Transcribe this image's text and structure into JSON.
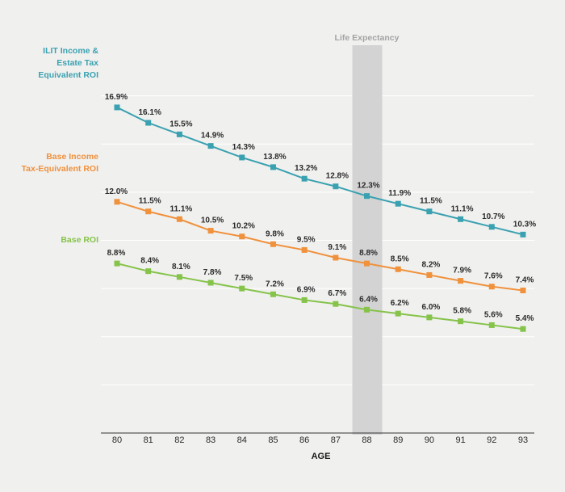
{
  "chart_data": {
    "type": "line",
    "xlabel": "AGE",
    "ylabel": "",
    "x": [
      80,
      81,
      82,
      83,
      84,
      85,
      86,
      87,
      88,
      89,
      90,
      91,
      92,
      93
    ],
    "ylim": [
      0,
      20
    ],
    "grid": true,
    "highlight": {
      "label": "Life Expectancy",
      "x": 88
    },
    "series": [
      {
        "name_lines": [
          "ILIT Income &",
          "Estate Tax",
          "Equivalent ROI"
        ],
        "color": "#3aa1b0",
        "values": [
          16.9,
          16.1,
          15.5,
          14.9,
          14.3,
          13.8,
          13.2,
          12.8,
          12.3,
          11.9,
          11.5,
          11.1,
          10.7,
          10.3
        ],
        "labels": [
          "16.9%",
          "16.1%",
          "15.5%",
          "14.9%",
          "14.3%",
          "13.8%",
          "13.2%",
          "12.8%",
          "12.3%",
          "11.9%",
          "11.5%",
          "11.1%",
          "10.7%",
          "10.3%"
        ]
      },
      {
        "name_lines": [
          "Base Income",
          "Tax-Equivalent ROI"
        ],
        "color": "#f0913c",
        "values": [
          12.0,
          11.5,
          11.1,
          10.5,
          10.2,
          9.8,
          9.5,
          9.1,
          8.8,
          8.5,
          8.2,
          7.9,
          7.6,
          7.4
        ],
        "labels": [
          "12.0%",
          "11.5%",
          "11.1%",
          "10.5%",
          "10.2%",
          "9.8%",
          "9.5%",
          "9.1%",
          "8.8%",
          "8.5%",
          "8.2%",
          "7.9%",
          "7.6%",
          "7.4%"
        ]
      },
      {
        "name_lines": [
          "Base ROI"
        ],
        "color": "#86c34a",
        "values": [
          8.8,
          8.4,
          8.1,
          7.8,
          7.5,
          7.2,
          6.9,
          6.7,
          6.4,
          6.2,
          6.0,
          5.8,
          5.6,
          5.4
        ],
        "labels": [
          "8.8%",
          "8.4%",
          "8.1%",
          "7.8%",
          "7.5%",
          "7.2%",
          "6.9%",
          "6.7%",
          "6.4%",
          "6.2%",
          "6.0%",
          "5.8%",
          "5.6%",
          "5.4%"
        ]
      }
    ]
  }
}
